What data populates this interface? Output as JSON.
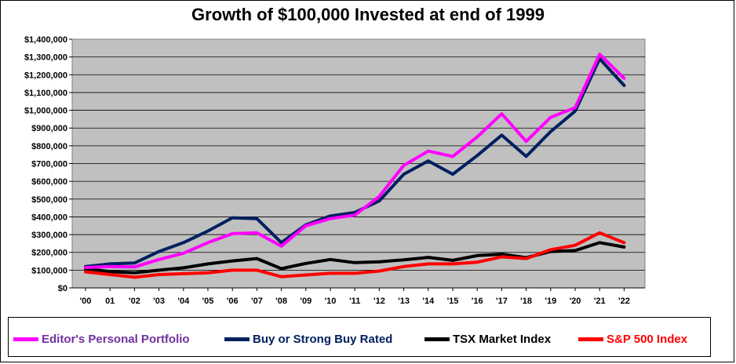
{
  "chart_data": {
    "type": "line",
    "title": "Growth of $100,000  Invested at end of 1999",
    "xlabel": "",
    "ylabel": "",
    "categories": [
      "'00",
      "01",
      "'02",
      "'03",
      "'04",
      "'05",
      "'06",
      "'07",
      "'08",
      "'09",
      "'10",
      "'11",
      "'12",
      "'13",
      "'14",
      "'15",
      "'16",
      "'17",
      "'18",
      "'19",
      "'20",
      "'21",
      "'22"
    ],
    "ylim": [
      0,
      1400000
    ],
    "ytick_step": 100000,
    "ytick_labels": [
      "$0",
      "$100,000",
      "$200,000",
      "$300,000",
      "$400,000",
      "$500,000",
      "$600,000",
      "$700,000",
      "$800,000",
      "$900,000",
      "$1,000,000",
      "$1,100,000",
      "$1,200,000",
      "$1,300,000",
      "$1,400,000"
    ],
    "grid": "horizontal",
    "plot_background": "#c0c0c0",
    "legend_position": "bottom",
    "series": [
      {
        "name": "Editor's Personal Portfolio",
        "color": "#ff00ff",
        "values": [
          115000,
          120000,
          118000,
          160000,
          195000,
          255000,
          305000,
          310000,
          235000,
          350000,
          390000,
          410000,
          515000,
          690000,
          770000,
          740000,
          850000,
          980000,
          825000,
          960000,
          1015000,
          1315000,
          1180000
        ]
      },
      {
        "name": "Buy or Strong Buy Rated",
        "color": "#002060",
        "values": [
          120000,
          135000,
          140000,
          205000,
          255000,
          320000,
          395000,
          390000,
          255000,
          355000,
          405000,
          425000,
          490000,
          640000,
          715000,
          640000,
          745000,
          860000,
          740000,
          880000,
          995000,
          1290000,
          1140000
        ]
      },
      {
        "name": "TSX Market Index",
        "color": "#000000",
        "values": [
          108000,
          92000,
          85000,
          100000,
          113000,
          135000,
          152000,
          165000,
          108000,
          138000,
          160000,
          142000,
          147000,
          158000,
          172000,
          155000,
          182000,
          190000,
          170000,
          205000,
          210000,
          255000,
          230000
        ]
      },
      {
        "name": "S&P 500 Index",
        "color": "#ff0000",
        "values": [
          90000,
          75000,
          60000,
          75000,
          80000,
          85000,
          100000,
          100000,
          63000,
          73000,
          82000,
          82000,
          95000,
          120000,
          135000,
          135000,
          145000,
          175000,
          165000,
          215000,
          240000,
          310000,
          255000
        ]
      }
    ]
  }
}
